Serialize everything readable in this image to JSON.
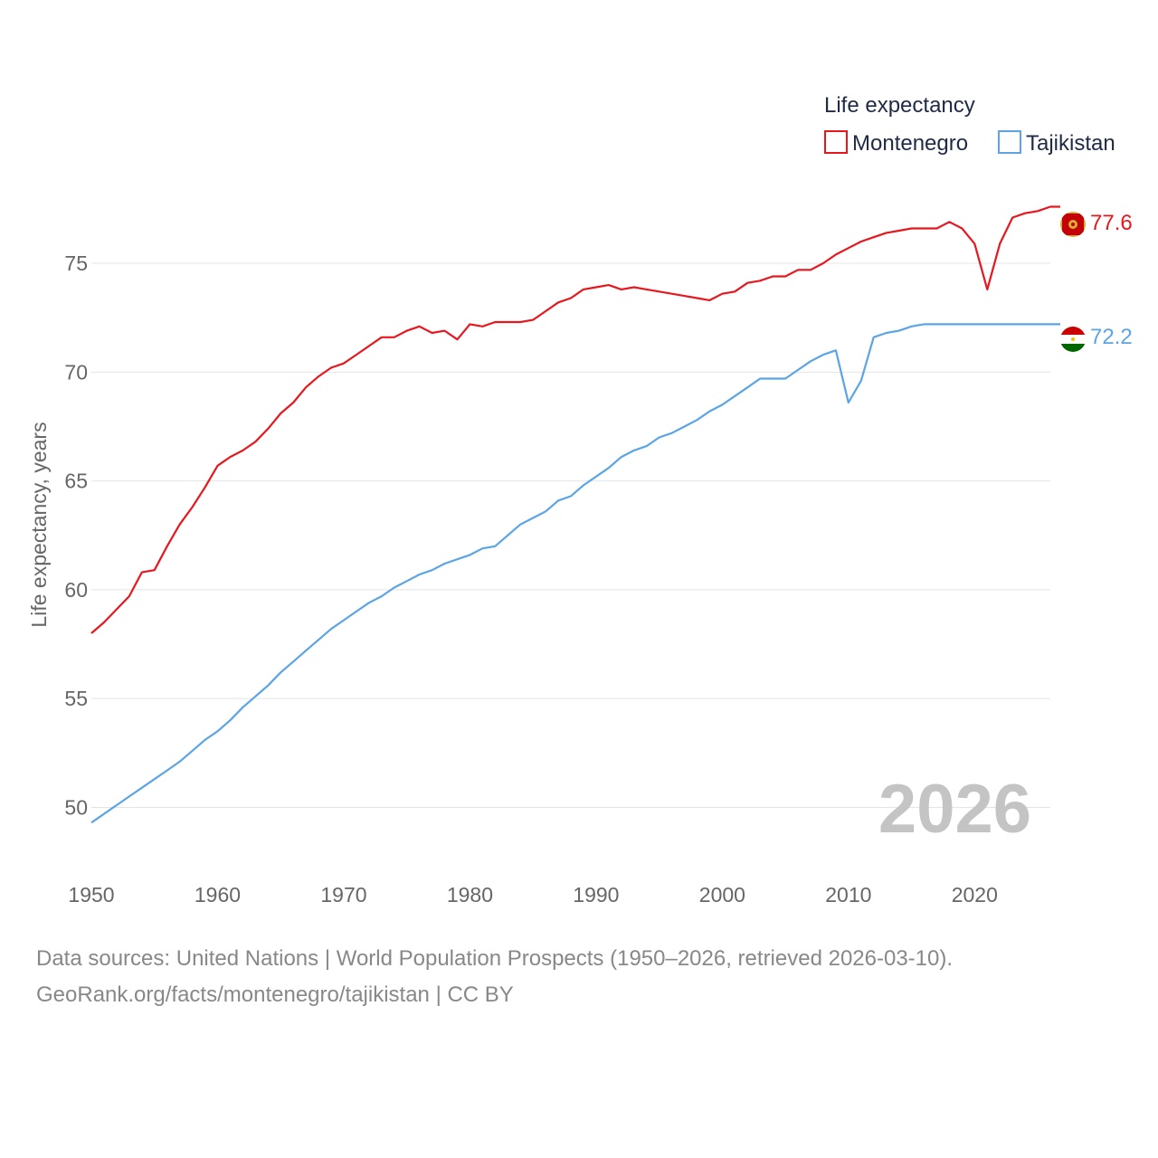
{
  "chart_data": {
    "type": "line",
    "legend_title": "Life expectancy",
    "ylabel": "Life expectancy, years",
    "xlim": [
      1950,
      2026
    ],
    "ylim": [
      47.4,
      79.2
    ],
    "x_ticks": [
      "1950",
      "1960",
      "1970",
      "1980",
      "1990",
      "2000",
      "2010",
      "2020"
    ],
    "x_tick_values": [
      1950,
      1960,
      1970,
      1980,
      1990,
      2000,
      2010,
      2020
    ],
    "y_ticks": [
      "50",
      "55",
      "60",
      "65",
      "70",
      "75"
    ],
    "y_tick_values": [
      50,
      55,
      60,
      65,
      70,
      75
    ],
    "year_label": "2026",
    "series": [
      {
        "name": "Montenegro",
        "color": "#e8171d",
        "end_label": "77.6",
        "x": [
          1950,
          1951,
          1952,
          1953,
          1954,
          1955,
          1956,
          1957,
          1958,
          1959,
          1960,
          1961,
          1962,
          1963,
          1964,
          1965,
          1966,
          1967,
          1968,
          1969,
          1970,
          1971,
          1972,
          1973,
          1974,
          1975,
          1976,
          1977,
          1978,
          1979,
          1980,
          1981,
          1982,
          1983,
          1984,
          1985,
          1986,
          1987,
          1988,
          1989,
          1990,
          1991,
          1992,
          1993,
          1994,
          1995,
          1996,
          1997,
          1998,
          1999,
          2000,
          2001,
          2002,
          2003,
          2004,
          2005,
          2006,
          2007,
          2008,
          2009,
          2010,
          2011,
          2012,
          2013,
          2014,
          2015,
          2016,
          2017,
          2018,
          2019,
          2020,
          2021,
          2022,
          2023,
          2024,
          2025,
          2026
        ],
        "values": [
          58.0,
          58.5,
          59.1,
          59.7,
          60.8,
          60.9,
          62.0,
          63.0,
          63.8,
          64.7,
          65.7,
          66.1,
          66.4,
          66.8,
          67.4,
          68.1,
          68.6,
          69.3,
          69.8,
          70.2,
          70.4,
          70.8,
          71.2,
          71.6,
          71.6,
          71.9,
          72.1,
          71.8,
          71.9,
          71.5,
          72.2,
          72.1,
          72.3,
          72.3,
          72.3,
          72.4,
          72.8,
          73.2,
          73.4,
          73.8,
          73.9,
          74.0,
          73.8,
          73.9,
          73.8,
          73.7,
          73.6,
          73.5,
          73.4,
          73.3,
          73.6,
          73.7,
          74.1,
          74.2,
          74.4,
          74.4,
          74.7,
          74.7,
          75.0,
          75.4,
          75.7,
          76.0,
          76.2,
          76.4,
          76.5,
          76.6,
          76.6,
          76.6,
          76.9,
          76.6,
          75.9,
          73.8,
          75.9,
          77.1,
          77.3,
          77.4,
          77.6
        ]
      },
      {
        "name": "Tajikistan",
        "color": "#5ba4e5",
        "end_label": "72.2",
        "x": [
          1950,
          1951,
          1952,
          1953,
          1954,
          1955,
          1956,
          1957,
          1958,
          1959,
          1960,
          1961,
          1962,
          1963,
          1964,
          1965,
          1966,
          1967,
          1968,
          1969,
          1970,
          1971,
          1972,
          1973,
          1974,
          1975,
          1976,
          1977,
          1978,
          1979,
          1980,
          1981,
          1982,
          1983,
          1984,
          1985,
          1986,
          1987,
          1988,
          1989,
          1990,
          1991,
          1992,
          1993,
          1994,
          1995,
          1996,
          1997,
          1998,
          1999,
          2000,
          2001,
          2002,
          2003,
          2004,
          2005,
          2006,
          2007,
          2008,
          2009,
          2010,
          2011,
          2012,
          2013,
          2014,
          2015,
          2016,
          2017,
          2018,
          2019,
          2020,
          2021,
          2022,
          2023,
          2024,
          2025,
          2026
        ],
        "values": [
          49.3,
          49.7,
          50.1,
          50.5,
          50.9,
          51.3,
          51.7,
          52.1,
          52.6,
          53.1,
          53.5,
          54.0,
          54.6,
          55.1,
          55.6,
          56.2,
          56.7,
          57.2,
          57.7,
          58.2,
          58.6,
          59.0,
          59.4,
          59.7,
          60.1,
          60.4,
          60.7,
          60.9,
          61.2,
          61.4,
          61.6,
          61.9,
          62.0,
          62.5,
          63.0,
          63.3,
          63.6,
          64.1,
          64.3,
          64.8,
          65.2,
          65.6,
          66.1,
          66.4,
          66.6,
          67.0,
          67.2,
          67.5,
          67.8,
          68.2,
          68.5,
          68.9,
          69.3,
          69.7,
          69.7,
          69.7,
          70.1,
          70.5,
          70.8,
          71.0,
          68.6,
          69.6,
          71.6,
          71.8,
          71.9,
          72.1,
          72.2,
          72.2,
          72.2,
          72.2,
          72.2,
          72.2,
          72.2,
          72.2,
          72.2,
          72.2,
          72.2
        ]
      }
    ]
  },
  "source": {
    "line1": "Data sources: United Nations | World Population Prospects (1950–2026, retrieved 2026-03-10).",
    "line2": "GeoRank.org/facts/montenegro/tajikistan | CC BY"
  }
}
